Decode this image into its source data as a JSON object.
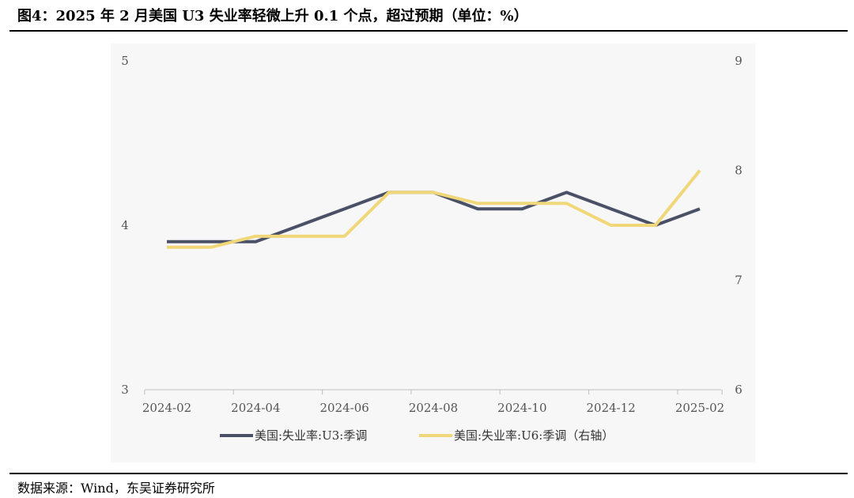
{
  "header": {
    "title": "图4：2025 年 2 月美国 U3 失业率轻微上升 0.1 个点，超过预期（单位：%）"
  },
  "footer": {
    "source": "数据来源：Wind，东吴证券研究所"
  },
  "chart_data": {
    "type": "line",
    "x": [
      "2024-02",
      "2024-03",
      "2024-04",
      "2024-05",
      "2024-06",
      "2024-07",
      "2024-08",
      "2024-09",
      "2024-10",
      "2024-11",
      "2024-12",
      "2025-01",
      "2025-02"
    ],
    "x_tick_labels": [
      "2024-02",
      "2024-04",
      "2024-06",
      "2024-08",
      "2024-10",
      "2024-12",
      "2025-02"
    ],
    "left_axis": {
      "ylim": [
        3,
        5
      ],
      "ticks": [
        "3",
        "4",
        "5"
      ]
    },
    "right_axis": {
      "ylim": [
        6,
        9
      ],
      "ticks": [
        "6",
        "7",
        "8",
        "9"
      ]
    },
    "series": [
      {
        "name": "美国:失业率:U3:季调",
        "axis": "left",
        "color": "#4a5066",
        "values": [
          3.9,
          3.9,
          3.9,
          4.0,
          4.1,
          4.2,
          4.2,
          4.1,
          4.1,
          4.2,
          4.1,
          4.0,
          4.1
        ]
      },
      {
        "name": "美国:失业率:U6:季调（右轴）",
        "axis": "right",
        "color": "#f0d77a",
        "values": [
          7.3,
          7.3,
          7.4,
          7.4,
          7.4,
          7.8,
          7.8,
          7.7,
          7.7,
          7.7,
          7.5,
          7.5,
          8.0
        ]
      }
    ],
    "grid": false,
    "legend_position": "bottom"
  }
}
